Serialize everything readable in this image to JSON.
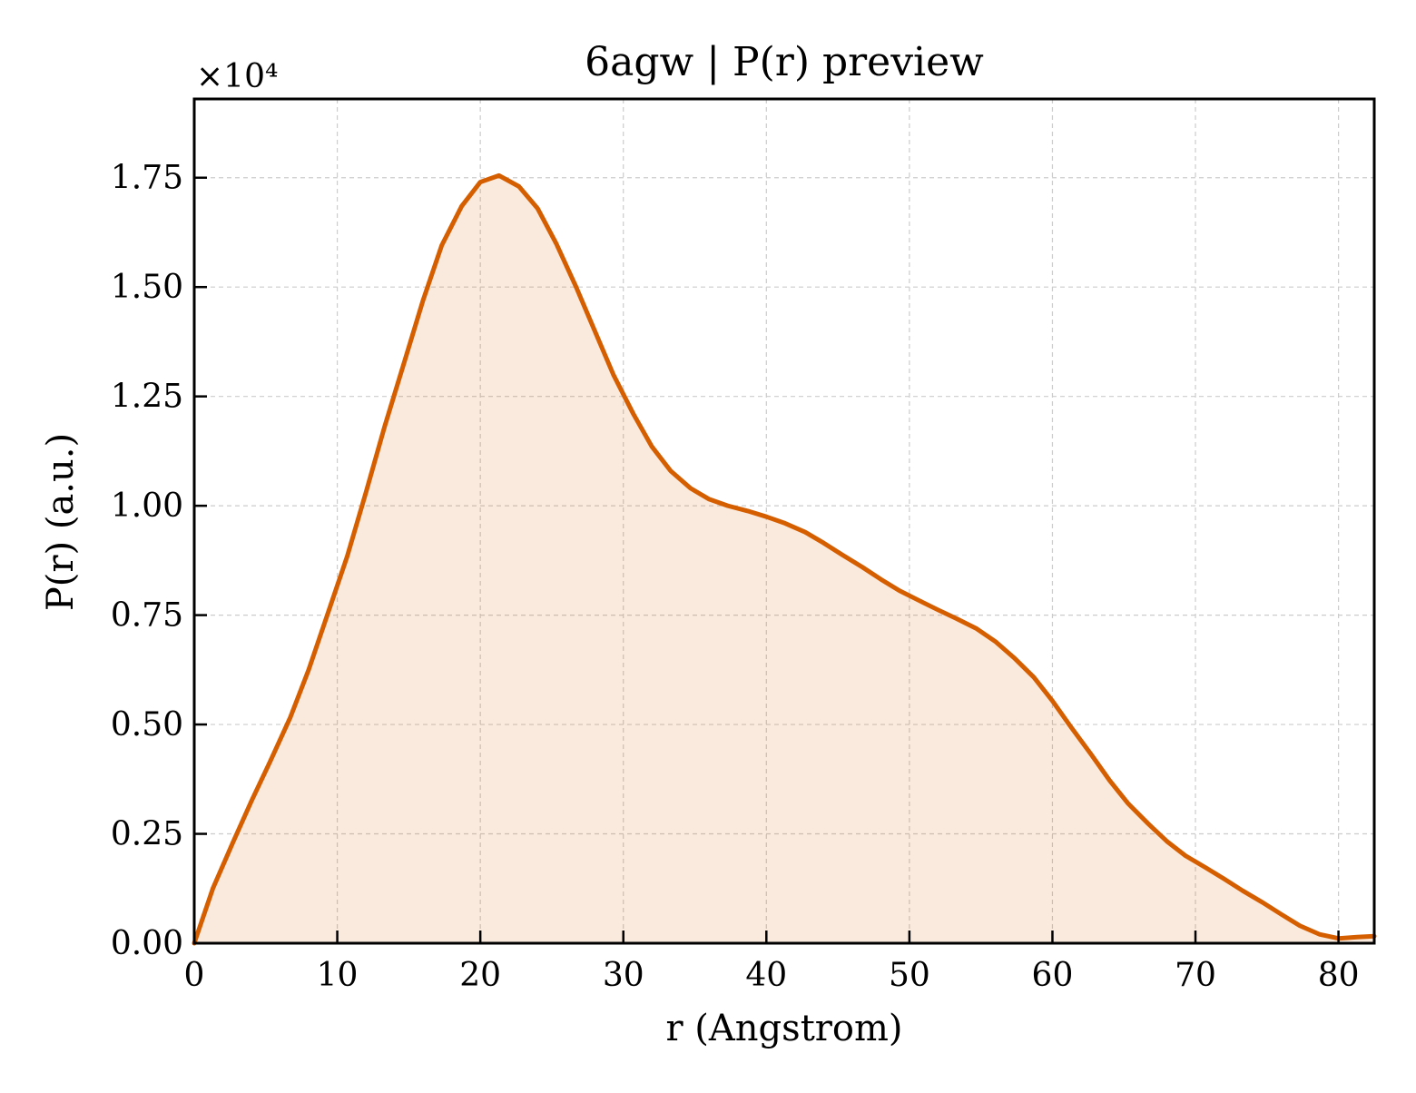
{
  "chart_data": {
    "type": "area",
    "title": "6agw | P(r) preview",
    "xlabel": "r (Angstrom)",
    "ylabel": "P(r) (a.u.)",
    "y_offset_label": "×10⁴",
    "y_scale_factor": 10000,
    "xlim": [
      0,
      82.5
    ],
    "ylim": [
      0,
      19300
    ],
    "grid": true,
    "x_ticks": [
      0,
      10,
      20,
      30,
      40,
      50,
      60,
      70,
      80
    ],
    "x_tick_labels": [
      "0",
      "10",
      "20",
      "30",
      "40",
      "50",
      "60",
      "70",
      "80"
    ],
    "y_ticks": [
      0,
      2500,
      5000,
      7500,
      10000,
      12500,
      15000,
      17500
    ],
    "y_tick_labels": [
      "0.00",
      "0.25",
      "0.50",
      "0.75",
      "1.00",
      "1.25",
      "1.50",
      "1.75"
    ],
    "colors": {
      "line": "#d55e00",
      "fill": "#d55e00",
      "grid": "#cccccc",
      "axes": "#000000"
    },
    "series": [
      {
        "x": [
          0,
          1.3,
          2.7,
          4.0,
          5.3,
          6.7,
          8.0,
          9.3,
          10.7,
          12.0,
          13.3,
          14.7,
          16.0,
          17.3,
          18.7,
          20.0,
          21.3,
          22.7,
          24.0,
          25.3,
          26.7,
          28.0,
          29.3,
          30.7,
          32.0,
          33.3,
          34.7,
          36.0,
          37.3,
          38.7,
          40.0,
          41.3,
          42.7,
          44.0,
          45.3,
          46.7,
          48.0,
          49.3,
          50.7,
          52.0,
          53.3,
          54.7,
          56.0,
          57.3,
          58.7,
          60.0,
          61.3,
          62.7,
          64.0,
          65.3,
          66.7,
          68.0,
          69.3,
          70.7,
          72.0,
          73.3,
          74.7,
          76.0,
          77.3,
          78.7,
          80.0,
          81.3,
          82.5
        ],
        "y": [
          0,
          1250,
          2300,
          3250,
          4150,
          5150,
          6250,
          7500,
          8850,
          10300,
          11800,
          13300,
          14700,
          15950,
          16850,
          17400,
          17550,
          17300,
          16800,
          16000,
          15000,
          14000,
          13000,
          12100,
          11350,
          10800,
          10400,
          10150,
          10000,
          9880,
          9750,
          9600,
          9400,
          9150,
          8880,
          8600,
          8320,
          8060,
          7830,
          7620,
          7420,
          7190,
          6900,
          6530,
          6080,
          5540,
          4940,
          4320,
          3720,
          3190,
          2730,
          2330,
          2000,
          1730,
          1470,
          1200,
          930,
          660,
          400,
          200,
          110,
          140,
          160
        ]
      }
    ]
  }
}
